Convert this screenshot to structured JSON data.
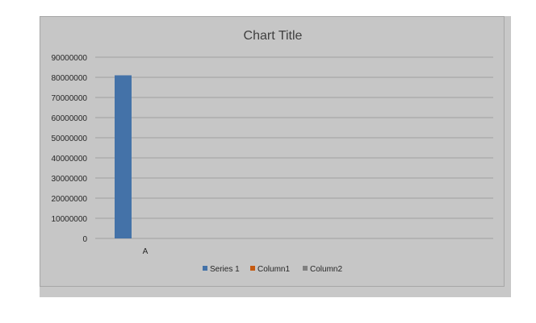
{
  "chart_data": {
    "type": "bar",
    "title": "Chart Title",
    "categories": [
      "A"
    ],
    "series": [
      {
        "name": "Series 1",
        "values": [
          81000000
        ],
        "color": "#4472a8"
      },
      {
        "name": "Column1",
        "values": [
          0
        ],
        "color": "#c55a11"
      },
      {
        "name": "Column2",
        "values": [
          0
        ],
        "color": "#808080"
      }
    ],
    "ylim": [
      0,
      90000000
    ],
    "yticks": [
      "90000000",
      "80000000",
      "70000000",
      "60000000",
      "50000000",
      "40000000",
      "30000000",
      "20000000",
      "10000000",
      "0"
    ],
    "grid": true,
    "legend_position": "bottom",
    "xlabel": "",
    "ylabel": ""
  }
}
